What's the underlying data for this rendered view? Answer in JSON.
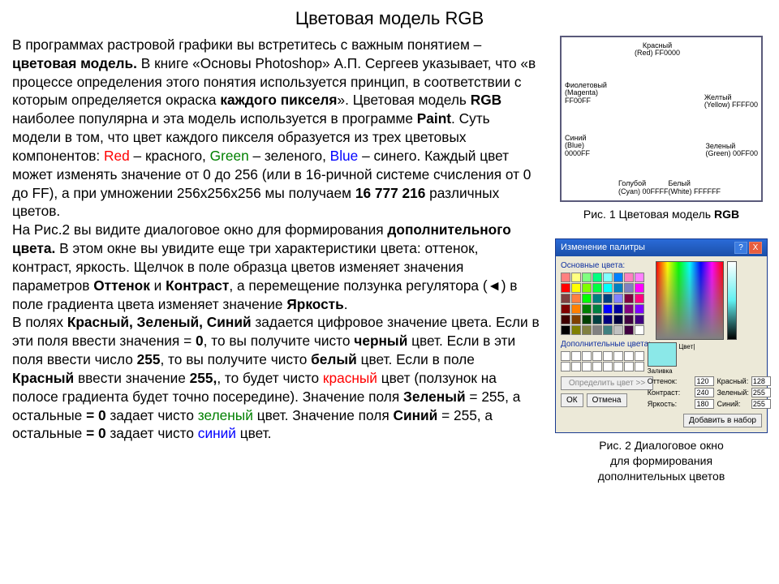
{
  "title": "Цветовая модель RGB",
  "text": {
    "p1a": "В программах растровой графики вы встретитесь с важным понятием – ",
    "p1b": "цветовая модель.",
    "p1c": "  В книге «Основы Photoshop» А.П. Сергеев указывает, что  «в процессе определения этого понятия используется принцип, в соответствии с которым определяется окраска ",
    "p1d": "каждого пикселя",
    "p1e": "». Цветовая модель ",
    "p1f": "RGB",
    "p1g": " наиболее популярна и эта модель используется в программе ",
    "p1h": "Paint",
    "p1i": ".  Суть модели в том, что цвет каждого пикселя образуется из трех цветовых компонентов: ",
    "red": "Red",
    "p1j": " – красного, ",
    "green": "Green",
    "p1k": " – зеленого,  ",
    "blue": "Blue",
    "p1l": " – синего. Каждый цвет может изменять значение от 0 до 256 (или в 16-ричной системе счисления от 0 до FF), а при умножении 256х256х256 мы получаем ",
    "p1m": "16 777 216",
    "p1n": " различных цветов.",
    "p2a": "На Рис.2 вы видите диалоговое окно для формирования ",
    "p2b": "дополнительного цвета.",
    "p2c": " В этом окне вы увидите еще три характеристики цвета: оттенок, контраст, яркость. Щелчок в поле образца цветов изменяет значения параметров ",
    "p2d": "Оттенок",
    "p2e": " и ",
    "p2f": "Контраст",
    "p2g": ", а перемещение ползунка регулятора (◄) в поле градиента цвета изменяет значение ",
    "p2h": "Яркость",
    "p2i": ".",
    "p3a": "В полях ",
    "p3b": "Красный, Зеленый, Синий",
    "p3c": " задается цифровое значение цвета. Если в эти поля ввести значения = ",
    "p3d": "0",
    "p3e": ", то вы получите чисто ",
    "p3f": "черный",
    "p3g": " цвет. Если в эти поля ввести число ",
    "p3h": "255",
    "p3i": ", то вы получите чисто ",
    "p3j": "белый",
    "p3k": " цвет. Если в поле ",
    "p3l": "Красный",
    "p3m": " ввести значение ",
    "p3n": "255,",
    "p3o": ", то будет чисто ",
    "p3p": "красный",
    "p3q": " цвет (ползунок на полосе градиента будет точно посередине). Значение поля ",
    "p3r": "Зеленый",
    "p3s": " = 255, а остальные ",
    "p3t": "= 0",
    "p3u": " задает чисто ",
    "p3v": "зеленый",
    "p3w": " цвет. Значение поля ",
    "p3x": "Синий",
    "p3y": " = 255, а остальные ",
    "p3z": "= 0",
    "p3aa": " задает чисто ",
    "p3ab": "синий",
    "p3ac": " цвет."
  },
  "fig1": {
    "caption_a": "Рис. 1 Цветовая модель ",
    "caption_b": "RGB",
    "labels": {
      "red": "Красный\n(Red) FF0000",
      "yellow": "Желтый\n(Yellow) FFFF00",
      "green": "Зеленый\n(Green) 00FF00",
      "white": "Белый\n(White) FFFFFF",
      "cyan": "Голубой\n(Cyan) 00FFFF",
      "blue": "Синий\n(Blue)\n0000FF",
      "magenta": "Фиолетовый\n(Magenta)\nFF00FF"
    }
  },
  "fig2": {
    "caption_l1": "Рис. 2  Диалоговое окно",
    "caption_l2": "для формирования",
    "caption_l3": "дополнительных цветов",
    "title": "Изменение палитры",
    "basic_label": "Основные цвета:",
    "custom_label": "Дополнительные цвета:",
    "define_btn": "Определить цвет >>",
    "ok": "ОК",
    "cancel": "Отмена",
    "add": "Добавить в набор",
    "color_solid": "Цвет|Заливка",
    "fields": {
      "hue_lbl": "Оттенок:",
      "hue": "120",
      "sat_lbl": "Контраст:",
      "sat": "240",
      "lum_lbl": "Яркость:",
      "lum": "180",
      "r_lbl": "Красный:",
      "r": "128",
      "g_lbl": "Зеленый:",
      "g": "255",
      "b_lbl": "Синий:",
      "b": "255"
    },
    "basic_colors": [
      "#ff8080",
      "#ffff80",
      "#80ff80",
      "#00ff80",
      "#80ffff",
      "#0080ff",
      "#ff80c0",
      "#ff80ff",
      "#ff0000",
      "#ffff00",
      "#80ff00",
      "#00ff40",
      "#00ffff",
      "#0080c0",
      "#8080c0",
      "#ff00ff",
      "#804040",
      "#ff8040",
      "#00ff00",
      "#008080",
      "#004080",
      "#8080ff",
      "#800040",
      "#ff0080",
      "#800000",
      "#ff8000",
      "#008000",
      "#008040",
      "#0000ff",
      "#0000a0",
      "#800080",
      "#8000ff",
      "#400000",
      "#804000",
      "#004000",
      "#004040",
      "#000080",
      "#000040",
      "#400040",
      "#400080",
      "#000000",
      "#808000",
      "#808040",
      "#808080",
      "#408080",
      "#c0c0c0",
      "#400040",
      "#ffffff"
    ]
  }
}
